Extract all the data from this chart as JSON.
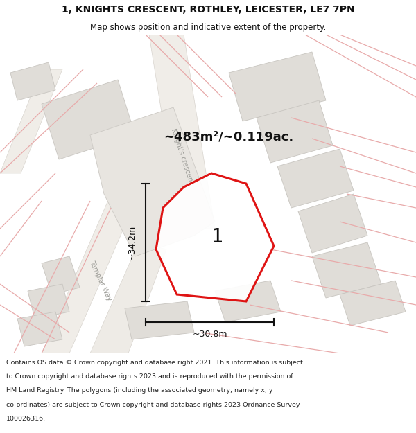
{
  "title_line1": "1, KNIGHTS CRESCENT, ROTHLEY, LEICESTER, LE7 7PN",
  "title_line2": "Map shows position and indicative extent of the property.",
  "area_label": "~483m²/~0.119ac.",
  "label_number": "1",
  "dim_horizontal": "~30.8m",
  "dim_vertical": "~34.2m",
  "map_bg": "#f7f4f0",
  "pink_line_color": "#e8aaaa",
  "building_fill": "#e0ddd8",
  "building_stroke": "#c8c5c0",
  "plot_stroke": "#dd0000",
  "plot_fill": "#ffffff",
  "dim_line_color": "#111111",
  "text_color": "#111111",
  "street_label_color": "#999994",
  "footer_lines": [
    "Contains OS data © Crown copyright and database right 2021. This information is subject",
    "to Crown copyright and database rights 2023 and is reproduced with the permission of",
    "HM Land Registry. The polygons (including the associated geometry, namely x, y",
    "co-ordinates) are subject to Crown copyright and database rights 2023 Ordnance Survey",
    "100026316."
  ],
  "road_band_fill": "#f0ede8",
  "road_band_stroke": "#d8d4ce",
  "knights_crescent_label": "Knight's crescent",
  "templar_way_label": "Templar Way"
}
